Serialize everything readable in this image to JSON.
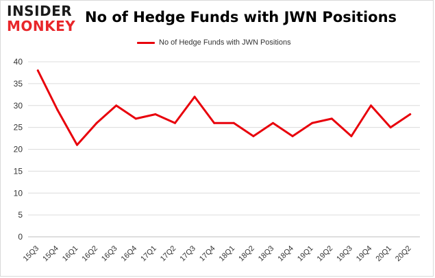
{
  "logo": {
    "line1": "INSIDER",
    "line2": "MONKEY"
  },
  "chart_data": {
    "type": "line",
    "title": "No of Hedge Funds with JWN Positions",
    "xlabel": "",
    "ylabel": "",
    "categories": [
      "15Q3",
      "15Q4",
      "16Q1",
      "16Q2",
      "16Q3",
      "16Q4",
      "17Q1",
      "17Q2",
      "17Q3",
      "17Q4",
      "18Q1",
      "18Q2",
      "18Q3",
      "18Q4",
      "19Q1",
      "19Q2",
      "19Q3",
      "19Q4",
      "20Q1",
      "20Q2"
    ],
    "series": [
      {
        "name": "No of Hedge Funds with JWN Positions",
        "values": [
          38,
          29,
          21,
          26,
          30,
          27,
          28,
          26,
          32,
          26,
          26,
          23,
          26,
          23,
          26,
          27,
          23,
          30,
          25,
          28
        ]
      }
    ],
    "ylim": [
      0,
      40
    ],
    "yticks": [
      0,
      5,
      10,
      15,
      20,
      25,
      30,
      35,
      40
    ],
    "grid": "horizontal",
    "legend_position": "top-center",
    "line_color": "#e8000b"
  }
}
